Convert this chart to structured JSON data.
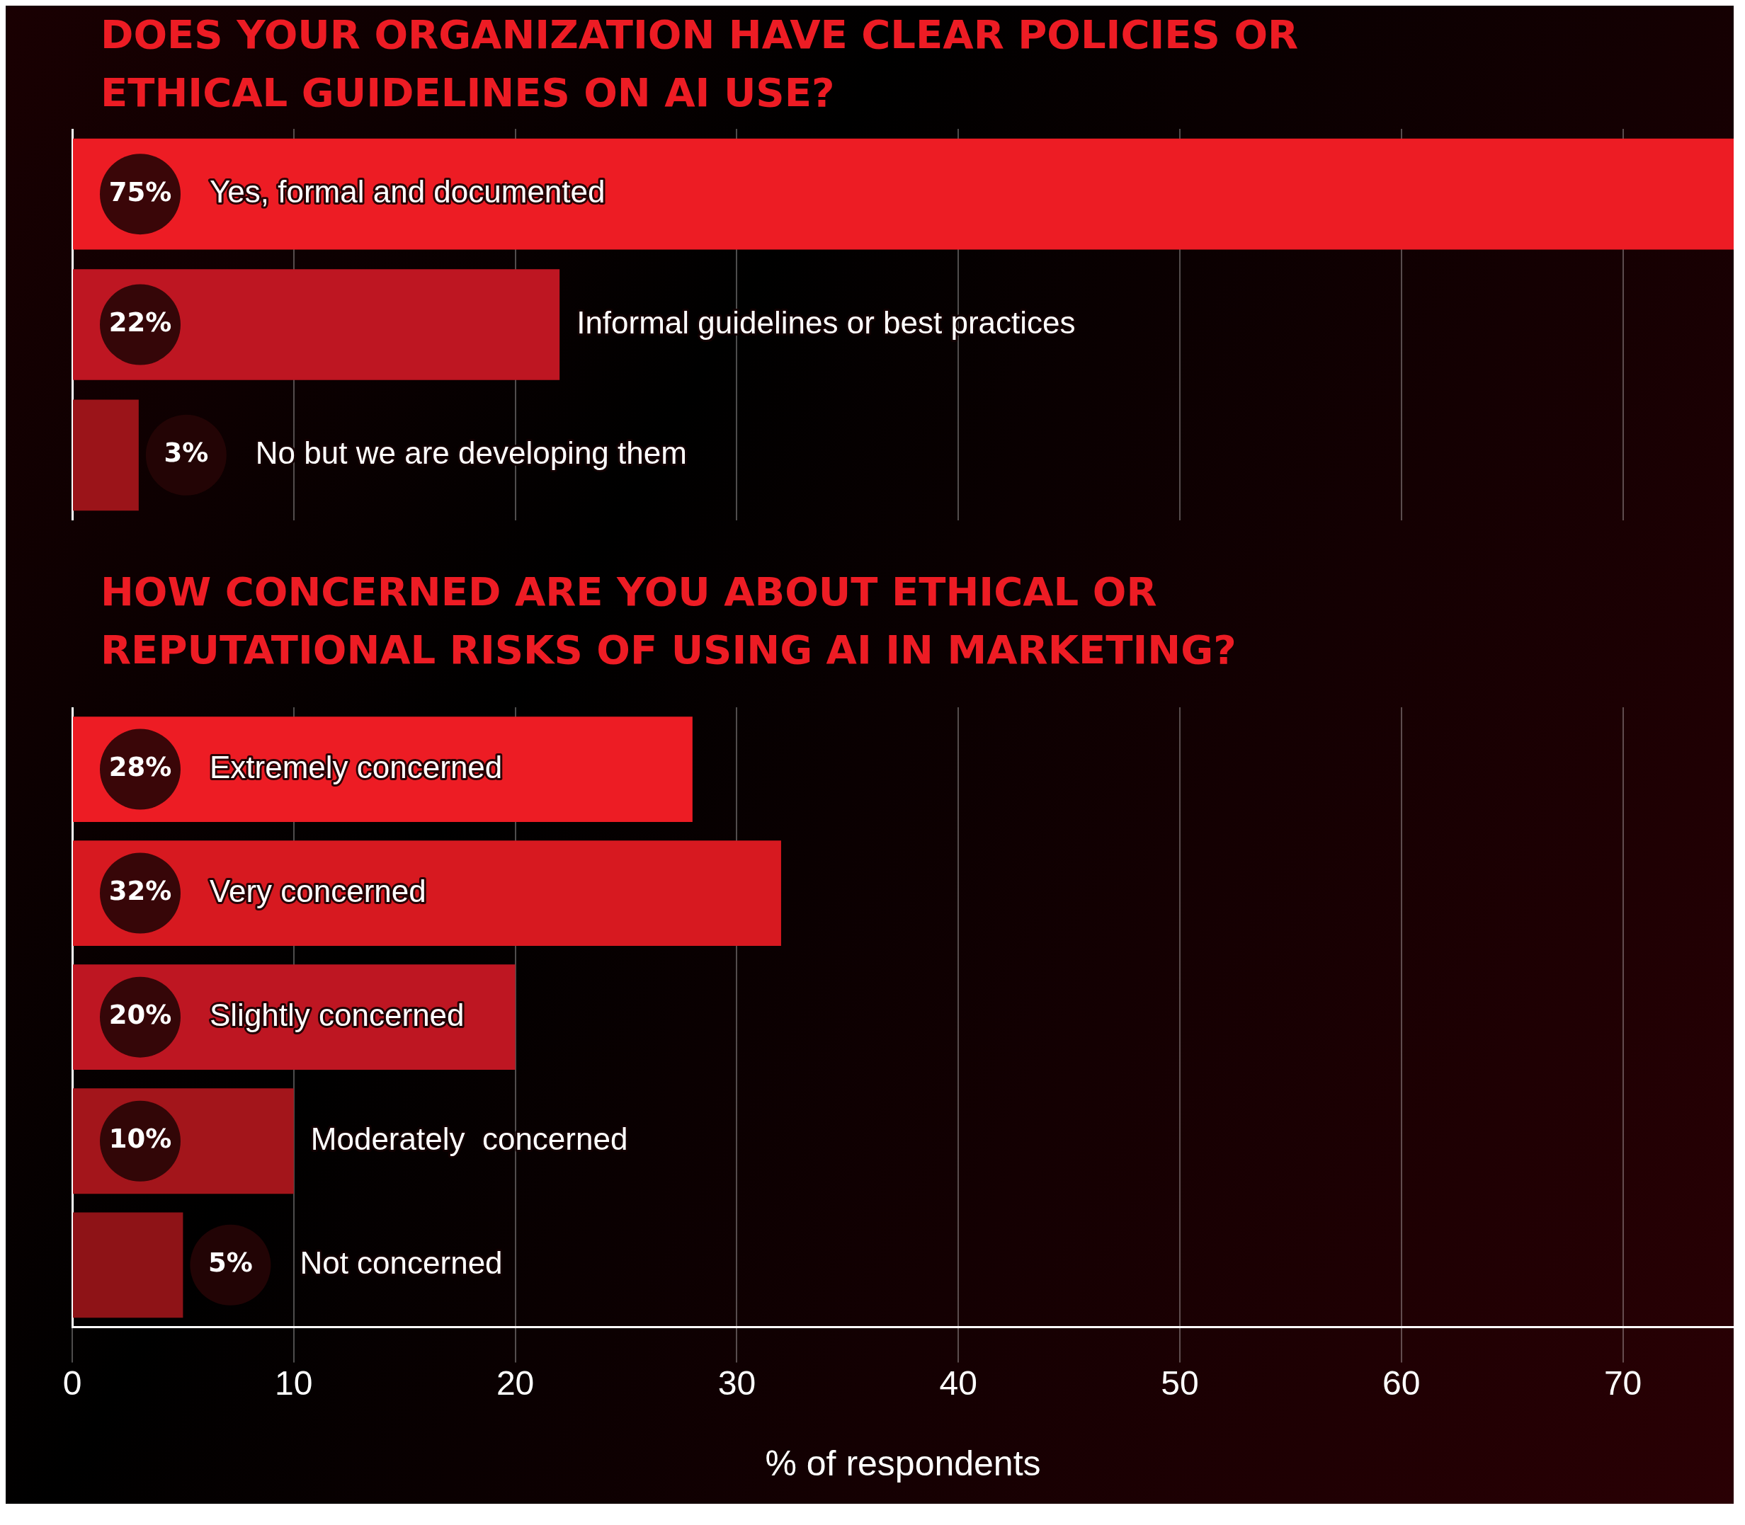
{
  "chart_data": [
    {
      "type": "bar",
      "orientation": "horizontal",
      "title": "DOES YOUR ORGANIZATION HAVE CLEAR POLICIES OR ETHICAL GUIDELINES ON AI USE?",
      "categories": [
        "Yes, formal and documented",
        "Informal guidelines or best practices",
        "No but we are developing them"
      ],
      "values": [
        75,
        22,
        3
      ],
      "value_labels": [
        "75%",
        "22%",
        "3%"
      ],
      "colors": [
        "#ed1c24",
        "#be1622",
        "#9b1419"
      ],
      "xlim": [
        0,
        75
      ],
      "xticks": [
        0,
        10,
        20,
        30,
        40,
        50,
        60,
        70
      ],
      "grid": "x",
      "tick_labels": "y"
    },
    {
      "type": "bar",
      "orientation": "horizontal",
      "title": "HOW CONCERNED ARE YOU ABOUT ETHICAL OR REPUTATIONAL RISKS OF USING AI IN MARKETING?",
      "categories": [
        "Extremely concerned",
        "Very concerned",
        "Slightly concerned",
        "Moderately  concerned",
        "Not concerned"
      ],
      "values": [
        28,
        32,
        20,
        10,
        5
      ],
      "value_labels": [
        "28%",
        "32%",
        "20%",
        "10%",
        "5%"
      ],
      "colors": [
        "#ed1c24",
        "#d71920",
        "#be1622",
        "#a3151b",
        "#8e1317"
      ],
      "xlim": [
        0,
        75
      ],
      "xticks": [
        0,
        10,
        20,
        30,
        40,
        50,
        60,
        70
      ],
      "grid": "x",
      "xlabel": "% of respondents"
    }
  ]
}
